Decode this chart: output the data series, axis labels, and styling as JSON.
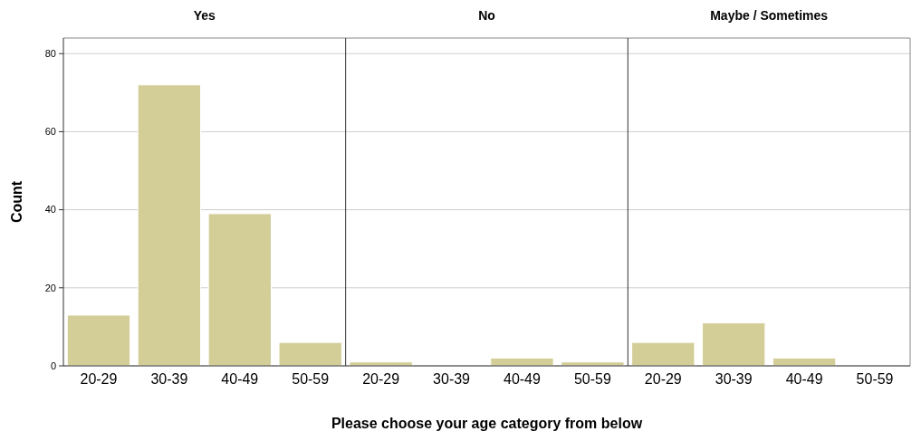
{
  "chart_data": [
    {
      "type": "bar",
      "title": "Yes",
      "ylabel": "Count",
      "categories": [
        "20-29",
        "30-39",
        "40-49",
        "50-59"
      ],
      "values": [
        13,
        72,
        39,
        6
      ],
      "color": "#d3ce98",
      "ylim": [
        0,
        84
      ],
      "yticks": [
        0,
        20,
        40,
        60,
        80
      ],
      "grid": "y"
    },
    {
      "type": "bar",
      "title": "No",
      "xlabel": "Please choose your age category from below",
      "categories": [
        "20-29",
        "30-39",
        "40-49",
        "50-59"
      ],
      "values": [
        1,
        0,
        2,
        1
      ],
      "color": "#d3ce98",
      "ylim": [
        0,
        84
      ],
      "yticks": [
        0,
        20,
        40,
        60,
        80
      ],
      "grid": "y",
      "tick_labels": "x"
    },
    {
      "type": "bar",
      "title": "Maybe / Sometimes",
      "categories": [
        "20-29",
        "30-39",
        "40-49",
        "50-59"
      ],
      "values": [
        6,
        11,
        2,
        0
      ],
      "color": "#d3ce98",
      "ylim": [
        0,
        84
      ],
      "yticks": [
        0,
        20,
        40,
        60,
        80
      ],
      "grid": "y",
      "tick_labels": "x"
    }
  ]
}
